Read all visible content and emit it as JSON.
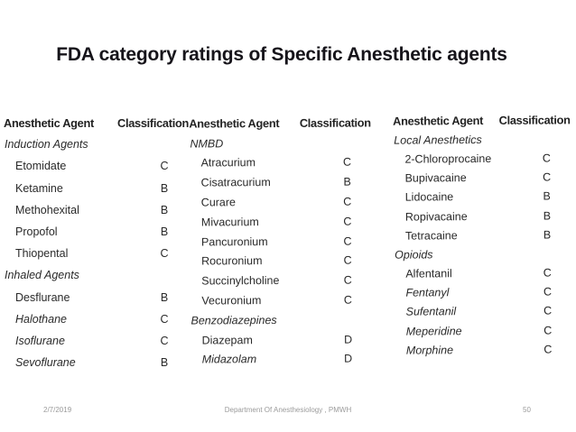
{
  "title": "FDA category ratings of Specific Anesthetic agents",
  "footer": {
    "date": "2/7/2019",
    "department": "Department Of Anesthesiology , PMWH",
    "page_number": "50"
  },
  "table": {
    "columns": [
      {
        "agent_header": "Anesthetic Agent",
        "classification_header": "Classification",
        "rows": [
          {
            "label": "Induction Agents",
            "classification": "",
            "type": "section"
          },
          {
            "label": "Etomidate",
            "classification": "C",
            "type": "item"
          },
          {
            "label": "Ketamine",
            "classification": "B",
            "type": "item"
          },
          {
            "label": "Methohexital",
            "classification": "B",
            "type": "item"
          },
          {
            "label": "Propofol",
            "classification": "B",
            "type": "item"
          },
          {
            "label": "Thiopental",
            "classification": "C",
            "type": "item"
          },
          {
            "label": "Inhaled Agents",
            "classification": "",
            "type": "section"
          },
          {
            "label": "Desflurane",
            "classification": "B",
            "type": "item"
          },
          {
            "label": "Halothane",
            "classification": "C",
            "type": "item",
            "italic": true
          },
          {
            "label": "Isoflurane",
            "classification": "C",
            "type": "item",
            "italic": true
          },
          {
            "label": "Sevoflurane",
            "classification": "B",
            "type": "item",
            "italic": true
          }
        ]
      },
      {
        "agent_header": "Anesthetic Agent",
        "classification_header": "Classification",
        "rows": [
          {
            "label": "NMBD",
            "classification": "",
            "type": "section"
          },
          {
            "label": "Atracurium",
            "classification": "C",
            "type": "item"
          },
          {
            "label": "Cisatracurium",
            "classification": "B",
            "type": "item"
          },
          {
            "label": "Curare",
            "classification": "C",
            "type": "item"
          },
          {
            "label": "Mivacurium",
            "classification": "C",
            "type": "item"
          },
          {
            "label": "Pancuronium",
            "classification": "C",
            "type": "item"
          },
          {
            "label": "Rocuronium",
            "classification": "C",
            "type": "item"
          },
          {
            "label": "Succinylcholine",
            "classification": "C",
            "type": "item"
          },
          {
            "label": "Vecuronium",
            "classification": "C",
            "type": "item"
          },
          {
            "label": "Benzodiazepines",
            "classification": "",
            "type": "section"
          },
          {
            "label": "Diazepam",
            "classification": "D",
            "type": "item"
          },
          {
            "label": "Midazolam",
            "classification": "D",
            "type": "item",
            "italic": true
          }
        ]
      },
      {
        "agent_header": "Anesthetic Agent",
        "classification_header": "Classification",
        "rows": [
          {
            "label": "Local Anesthetics",
            "classification": "",
            "type": "section"
          },
          {
            "label": "2-Chloroprocaine",
            "classification": "C",
            "type": "item"
          },
          {
            "label": "Bupivacaine",
            "classification": "C",
            "type": "item"
          },
          {
            "label": "Lidocaine",
            "classification": "B",
            "type": "item"
          },
          {
            "label": "Ropivacaine",
            "classification": "B",
            "type": "item"
          },
          {
            "label": "Tetracaine",
            "classification": "B",
            "type": "item"
          },
          {
            "label": "Opioids",
            "classification": "",
            "type": "section"
          },
          {
            "label": "Alfentanil",
            "classification": "C",
            "type": "item"
          },
          {
            "label": "Fentanyl",
            "classification": "C",
            "type": "item",
            "italic": true
          },
          {
            "label": "Sufentanil",
            "classification": "C",
            "type": "item",
            "italic": true
          },
          {
            "label": "Meperidine",
            "classification": "C",
            "type": "item",
            "italic": true
          },
          {
            "label": "Morphine",
            "classification": "C",
            "type": "item",
            "italic": true
          }
        ]
      }
    ]
  }
}
